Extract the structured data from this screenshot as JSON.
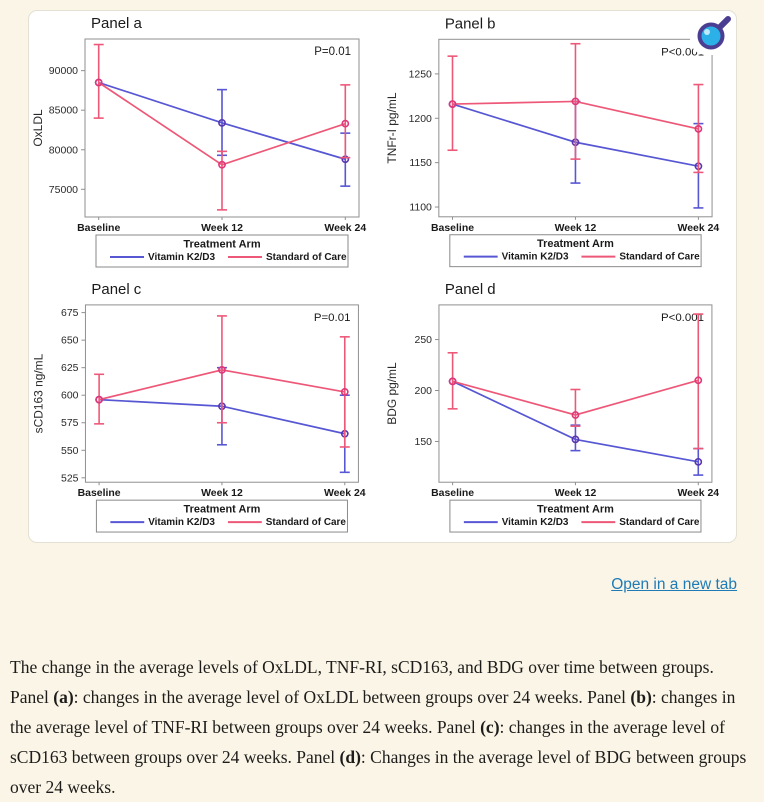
{
  "colors": {
    "page_background": "#faf5e7",
    "card_background": "#ffffff",
    "plot_border": "#8f8f8f",
    "series_blue": "#5757d4",
    "series_blue_marker": "#5b35b0",
    "series_pink": "#ee5878",
    "series_pink_marker": "#e0377a",
    "link_blue": "#1f7bb6",
    "magnifier_lens": "#2bb0e8",
    "magnifier_frame": "#4b3e92"
  },
  "icon": {
    "name": "magnifier-zoom-icon"
  },
  "open_link_label": "Open in a new tab",
  "caption": {
    "segments": [
      {
        "text": "The change in the average levels of OxLDL, TNF-RI, sCD163, and BDG over time between groups. Panel ",
        "bold": false
      },
      {
        "text": "(a)",
        "bold": true
      },
      {
        "text": ": changes in the average level of OxLDL between groups over 24 weeks. Panel ",
        "bold": false
      },
      {
        "text": "(b)",
        "bold": true
      },
      {
        "text": ": changes in the average level of TNF-RI between groups over 24 weeks. Panel ",
        "bold": false
      },
      {
        "text": "(c)",
        "bold": true
      },
      {
        "text": ": changes in the average level of sCD163 between groups over 24 weeks. Panel ",
        "bold": false
      },
      {
        "text": "(d)",
        "bold": true
      },
      {
        "text": ": Changes in the average level of BDG between groups over 24 weeks.",
        "bold": false
      }
    ]
  },
  "chart_data": [
    {
      "type": "line",
      "panel": "a",
      "title": "Panel a",
      "p_label": "P=0.01",
      "ylabel": "OxLDL",
      "categories": [
        "Baseline",
        "Week 12",
        "Week 24"
      ],
      "ylim": [
        71500,
        94000
      ],
      "yticks": [
        75000,
        80000,
        85000,
        90000
      ],
      "legend_title": "Treatment Arm",
      "series": [
        {
          "name": "Vitamin K2/D3",
          "color": "#5757d4",
          "marker": "#5b35b0",
          "values": [
            88500,
            83400,
            78800
          ],
          "errors": [
            null,
            [
              79300,
              87600
            ],
            [
              75400,
              82100
            ]
          ]
        },
        {
          "name": "Standard of Care",
          "color": "#ee5878",
          "marker": "#e0377a",
          "values": [
            88500,
            78100,
            83300
          ],
          "errors": [
            [
              84000,
              93300
            ],
            [
              72400,
              79800
            ],
            [
              79000,
              88200
            ]
          ]
        }
      ]
    },
    {
      "type": "line",
      "panel": "b",
      "title": "Panel b",
      "p_label": "P<0.001",
      "ylabel": "TNFr-I pg/mL",
      "categories": [
        "Baseline",
        "Week 12",
        "Week 24"
      ],
      "ylim": [
        1089,
        1289
      ],
      "yticks": [
        1100,
        1150,
        1200,
        1250
      ],
      "legend_title": "Treatment Arm",
      "series": [
        {
          "name": "Vitamin K2/D3",
          "color": "#5757d4",
          "marker": "#5b35b0",
          "values": [
            1216,
            1173,
            1146
          ],
          "errors": [
            null,
            [
              1127,
              1219
            ],
            [
              1099,
              1194
            ]
          ]
        },
        {
          "name": "Standard of Care",
          "color": "#ee5878",
          "marker": "#e0377a",
          "values": [
            1216,
            1219,
            1188
          ],
          "errors": [
            [
              1164,
              1270
            ],
            [
              1154,
              1284
            ],
            [
              1139,
              1238
            ]
          ]
        }
      ]
    },
    {
      "type": "line",
      "panel": "c",
      "title": "Panel c",
      "p_label": "P=0.01",
      "ylabel": "sCD163 ng/mL",
      "categories": [
        "Baseline",
        "Week 12",
        "Week 24"
      ],
      "ylim": [
        521,
        682
      ],
      "yticks": [
        525,
        550,
        575,
        600,
        625,
        650,
        675
      ],
      "legend_title": "Treatment Arm",
      "series": [
        {
          "name": "Vitamin K2/D3",
          "color": "#5757d4",
          "marker": "#5b35b0",
          "values": [
            596,
            590,
            565
          ],
          "errors": [
            null,
            [
              555,
              625
            ],
            [
              530,
              600
            ]
          ]
        },
        {
          "name": "Standard of Care",
          "color": "#ee5878",
          "marker": "#e0377a",
          "values": [
            596,
            623,
            603
          ],
          "errors": [
            [
              574,
              619
            ],
            [
              575,
              672
            ],
            [
              553,
              653
            ]
          ]
        }
      ]
    },
    {
      "type": "line",
      "panel": "d",
      "title": "Panel d",
      "p_label": "P<0.001",
      "ylabel": "BDG pg/mL",
      "categories": [
        "Baseline",
        "Week 12",
        "Week 24"
      ],
      "ylim": [
        110,
        284
      ],
      "yticks": [
        150,
        200,
        250
      ],
      "legend_title": "Treatment Arm",
      "series": [
        {
          "name": "Vitamin K2/D3",
          "color": "#5757d4",
          "marker": "#5b35b0",
          "values": [
            209,
            152,
            130
          ],
          "errors": [
            null,
            [
              141,
              166
            ],
            [
              117,
              143
            ]
          ]
        },
        {
          "name": "Standard of Care",
          "color": "#ee5878",
          "marker": "#e0377a",
          "values": [
            209,
            176,
            210
          ],
          "errors": [
            [
              182,
              237
            ],
            [
              165,
              201
            ],
            [
              143,
              275
            ]
          ]
        }
      ]
    }
  ]
}
